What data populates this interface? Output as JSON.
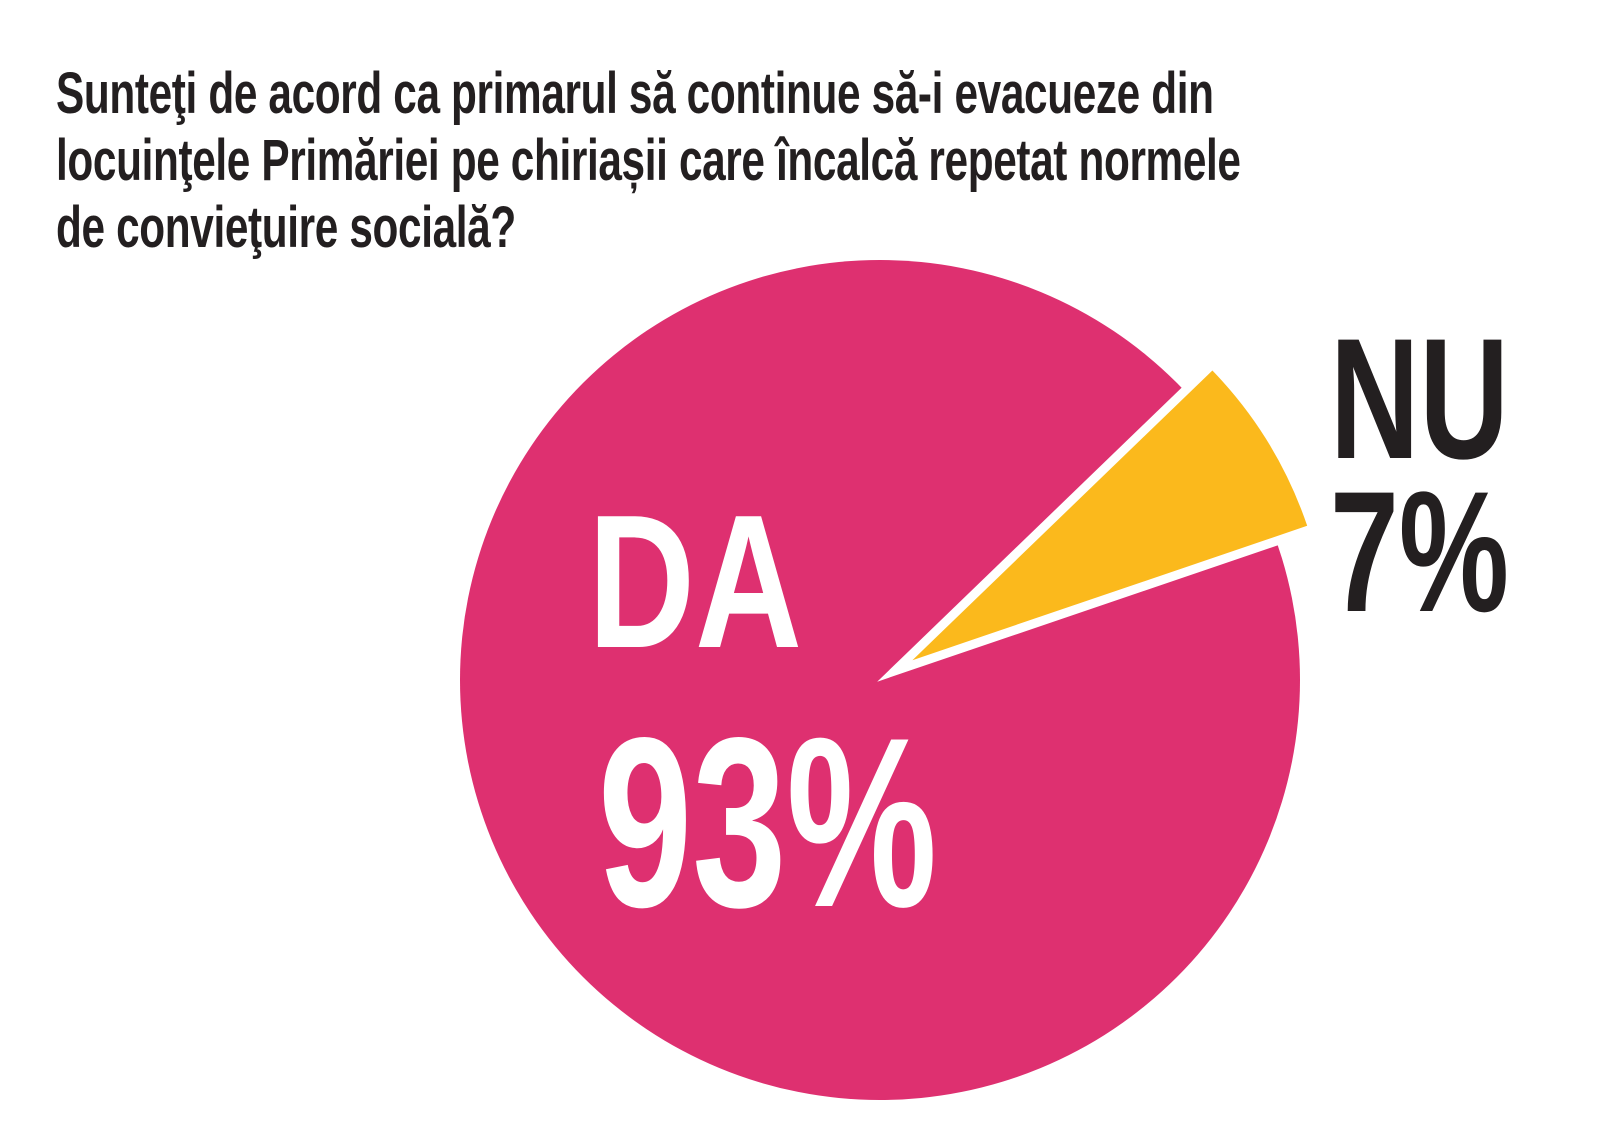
{
  "question": {
    "line1": "Sunteţi de acord ca primarul să continue să-i evacueze din",
    "line2": "locuinţele Primăriei pe chiriașii care încalcă repetat normele",
    "line3": "de convieţuire socială?"
  },
  "labels": {
    "da": "DA",
    "da_pct": "93%",
    "nu": "NU",
    "nu_pct": "7%"
  },
  "colors": {
    "background": "#ffffff",
    "ink": "#231f20",
    "da_slice": "#de3070",
    "nu_slice": "#fbb91c",
    "da_label": "#ffffff",
    "nu_label": "#231f20",
    "slice_separator": "#ffffff"
  },
  "chart_data": {
    "type": "pie",
    "title": "Sunteţi de acord ca primarul să continue să-i evacueze din locuinţele Primăriei pe chiriașii care încalcă repetat normele de convieţuire socială?",
    "unit": "%",
    "legend_position": "on-chart",
    "slices": [
      {
        "label": "DA",
        "value": 93,
        "color": "#de3070",
        "label_color": "#ffffff",
        "exploded": false
      },
      {
        "label": "NU",
        "value": 7,
        "color": "#fbb91c",
        "label_color": "#231f20",
        "exploded": true
      }
    ]
  }
}
